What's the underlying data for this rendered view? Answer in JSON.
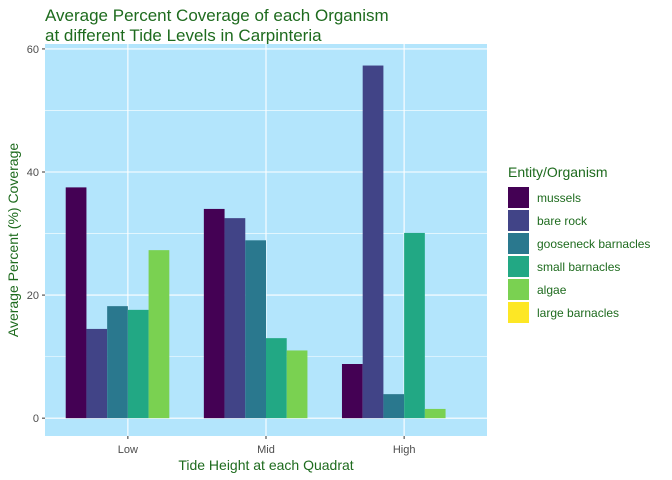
{
  "chart_data": {
    "type": "bar",
    "title": [
      "Average Percent Coverage of each Organism",
      "at different Tide Levels in Carpinteria"
    ],
    "xlabel": "Tide Height at each Quadrat",
    "ylabel": "Average Percent (%) Coverage",
    "categories": [
      "Low",
      "Mid",
      "High"
    ],
    "ylim": [
      -2.9,
      60.8
    ],
    "yticks": [
      0,
      20,
      40,
      60
    ],
    "grid": true,
    "legend_title": "Entity/Organism",
    "legend_position": "right",
    "series": [
      {
        "name": "mussels",
        "color": "#440154",
        "values": [
          37.5,
          34.0,
          8.8
        ]
      },
      {
        "name": "bare rock",
        "color": "#414487",
        "values": [
          14.5,
          32.5,
          57.3
        ]
      },
      {
        "name": "gooseneck barnacles",
        "color": "#2a788e",
        "values": [
          18.2,
          28.9,
          3.9
        ]
      },
      {
        "name": "small barnacles",
        "color": "#22a884",
        "values": [
          17.6,
          13.0,
          30.1
        ]
      },
      {
        "name": "algae",
        "color": "#7ad151",
        "values": [
          27.3,
          11.0,
          1.5
        ]
      },
      {
        "name": "large barnacles",
        "color": "#fde725",
        "values": [
          0,
          0,
          0
        ]
      }
    ]
  },
  "colors": {
    "panel_background": "#b3e5fc",
    "grid": "#ffffff",
    "text": "#1e6b1e",
    "tick_text": "#4d4d4d"
  }
}
